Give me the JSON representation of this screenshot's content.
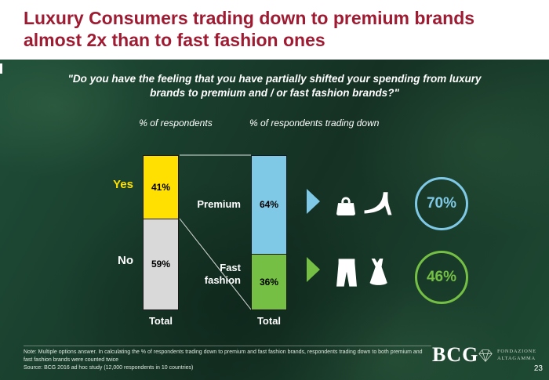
{
  "colors": {
    "title": "#9e1b32",
    "background_green": "#1c422e",
    "bar_border": "#1a1a1a"
  },
  "slide": {
    "title_line1": "Luxury Consumers trading down to premium brands",
    "title_line2": "almost 2x than to fast fashion ones",
    "question": "\"Do you have the feeling that you have partially shifted your spending from luxury brands to premium and / or fast fashion brands?\"",
    "page_number": "23"
  },
  "chart_data": {
    "type": "bar",
    "subtype": "100%-stacked-columns",
    "unit": "%",
    "charts": [
      {
        "title": "% of respondents",
        "category": "Total",
        "series": [
          {
            "name": "Yes",
            "value": 41,
            "label": "41%",
            "color": "#ffe000",
            "name_color": "#ffe000"
          },
          {
            "name": "No",
            "value": 59,
            "label": "59%",
            "color": "#d9d9d9",
            "name_color": "#ffffff"
          }
        ]
      },
      {
        "title": "% of respondents trading down",
        "category": "Total",
        "series": [
          {
            "name": "Premium",
            "value": 64,
            "label": "64%",
            "color": "#7fc9e6",
            "name_color": "#ffffff"
          },
          {
            "name": "Fast fashion",
            "value": 36,
            "label": "36%",
            "color": "#74bf44",
            "name_color": "#ffffff"
          }
        ]
      }
    ],
    "callouts": [
      {
        "segment": "Premium",
        "label": "70%",
        "color": "#7fc9e6",
        "icons": [
          "handbag",
          "high-heel-shoe"
        ]
      },
      {
        "segment": "Fast fashion",
        "label": "46%",
        "color": "#74bf44",
        "icons": [
          "trousers",
          "dress"
        ]
      }
    ]
  },
  "footer": {
    "note": "Note: Multiple options answer. In calculating the % of respondents trading down to premium and fast fashion brands, respondents trading down to both premium and fast fashion brands were counted twice",
    "source": "Source: BCG 2016 ad hoc study (12,000 respondents in 10 countries)"
  },
  "logos": {
    "bcg": "BCG",
    "partner_line1": "Fondazione",
    "partner_line2": "Altagamma"
  }
}
